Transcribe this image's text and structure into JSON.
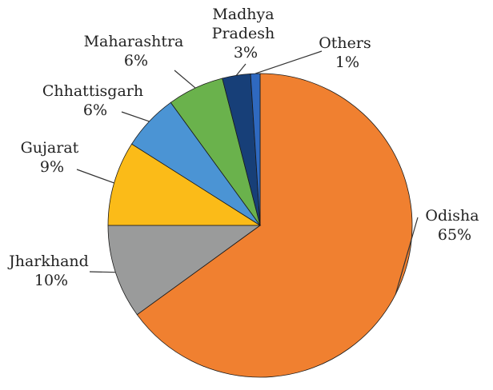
{
  "chart_data": {
    "type": "pie",
    "series": [
      {
        "name": "Odisha",
        "value": 65,
        "value_label": "65%",
        "color": "#f08030"
      },
      {
        "name": "Jharkhand",
        "value": 10,
        "value_label": "10%",
        "color": "#9a9b9b"
      },
      {
        "name": "Gujarat",
        "value": 9,
        "value_label": "9%",
        "color": "#fbbb18"
      },
      {
        "name": "Chhattisgarh",
        "value": 6,
        "value_label": "6%",
        "color": "#4b94d4"
      },
      {
        "name": "Maharashtra",
        "value": 6,
        "value_label": "6%",
        "color": "#6ab24c"
      },
      {
        "name": "Madhya Pradesh",
        "name_lines": [
          "Madhya",
          "Pradesh"
        ],
        "value": 3,
        "value_label": "3%",
        "color": "#173f78"
      },
      {
        "name": "Others",
        "value": 1,
        "value_label": "1%",
        "color": "#2f69c0"
      }
    ]
  }
}
